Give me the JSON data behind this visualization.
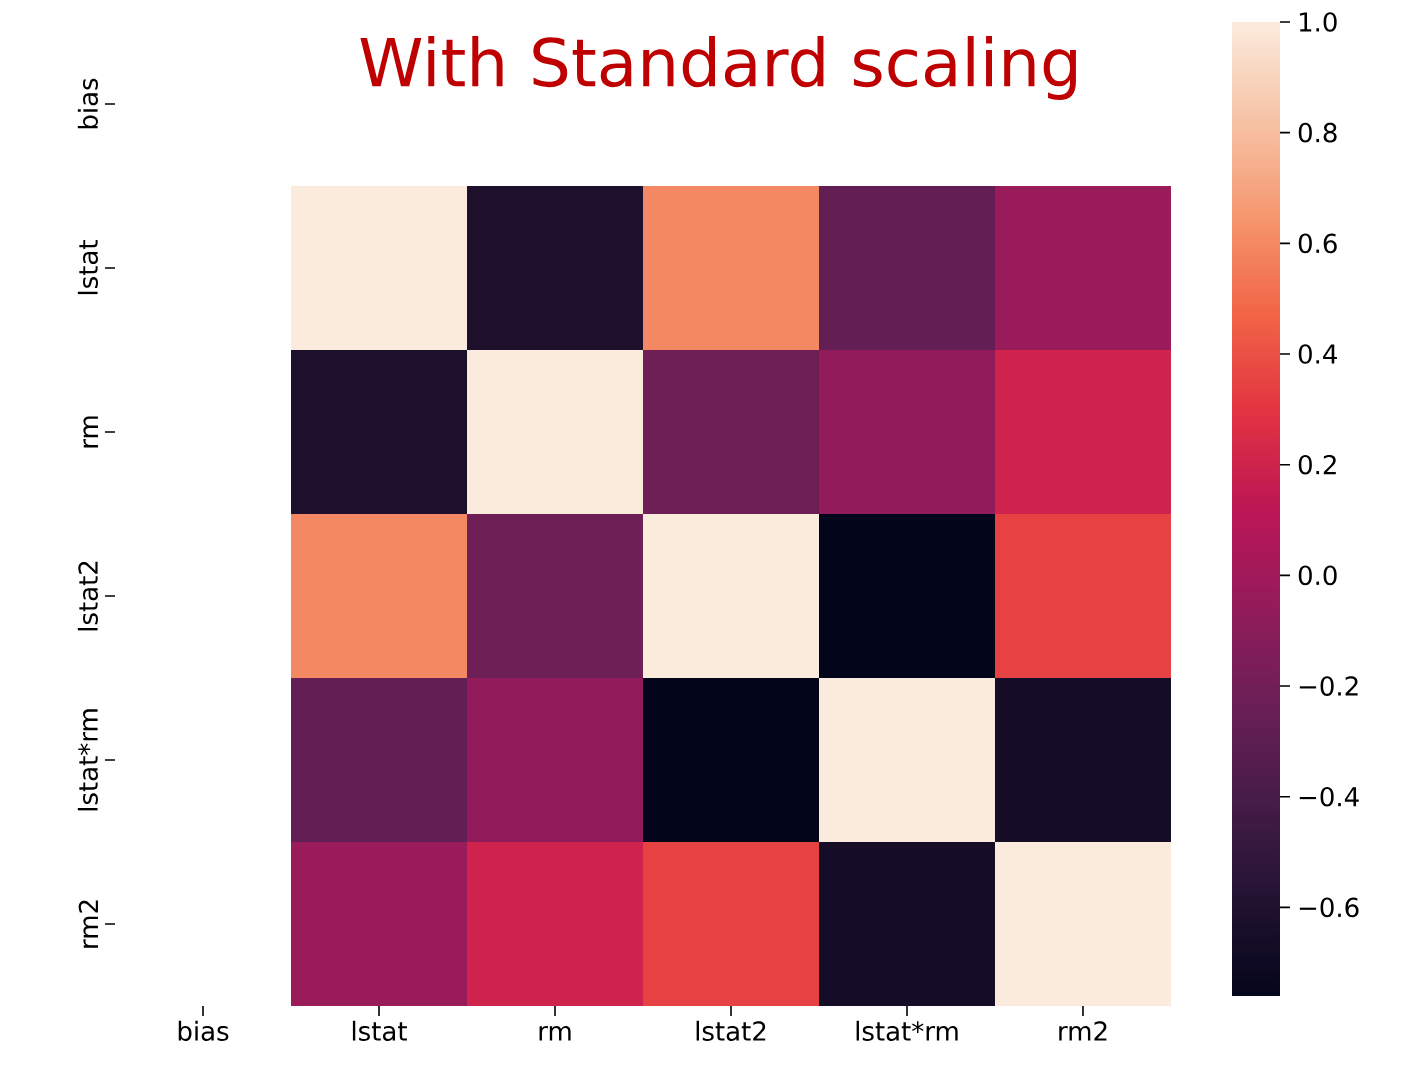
{
  "chart_data": {
    "type": "heatmap",
    "title": "With Standard scaling",
    "categories": [
      "bias",
      "lstat",
      "rm",
      "lstat2",
      "lstat*rm",
      "rm2"
    ],
    "y_categories": [
      "bias",
      "lstat",
      "rm",
      "lstat2",
      "lstat*rm",
      "rm2"
    ],
    "cells": [
      [
        null,
        null,
        null,
        null,
        null,
        null
      ],
      [
        null,
        1.0,
        -0.62,
        0.6,
        -0.27,
        -0.03
      ],
      [
        null,
        -0.62,
        1.0,
        -0.22,
        -0.06,
        0.2
      ],
      [
        null,
        0.6,
        -0.22,
        1.0,
        -0.76,
        0.35
      ],
      [
        null,
        -0.27,
        -0.06,
        -0.76,
        1.0,
        -0.66
      ],
      [
        null,
        -0.03,
        0.2,
        0.35,
        -0.66,
        1.0
      ]
    ],
    "clim": [
      -0.76,
      1.0
    ],
    "cticks": [
      {
        "value": -0.6,
        "label": "−0.6"
      },
      {
        "value": -0.4,
        "label": "−0.4"
      },
      {
        "value": -0.2,
        "label": "−0.2"
      },
      {
        "value": 0,
        "label": "0.0"
      },
      0.2,
      0.4,
      0.6,
      0.8,
      {
        "value": 1,
        "label": "1.0"
      }
    ]
  }
}
